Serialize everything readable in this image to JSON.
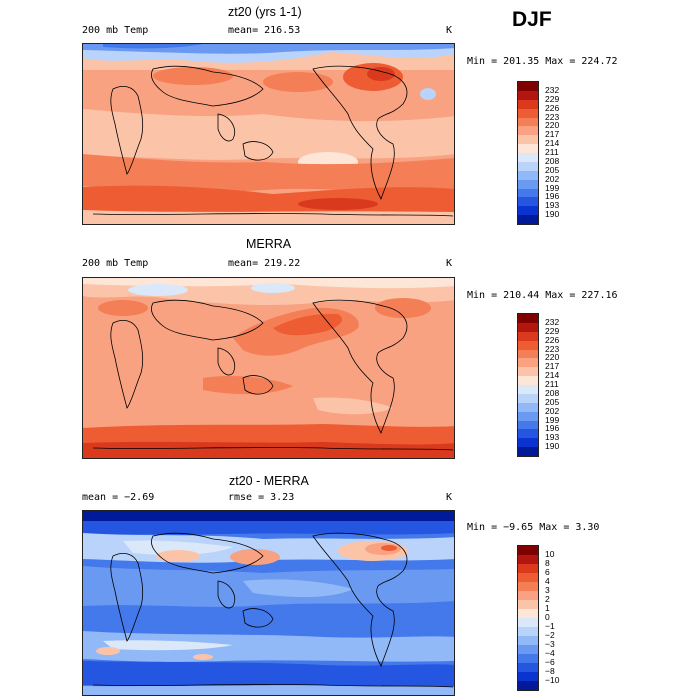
{
  "season": "DJF",
  "panels": [
    {
      "title": "zt20 (yrs 1-1)",
      "left_label": "200 mb Temp",
      "mid_label": "mean= 216.53",
      "unit": "K",
      "minmax": "Min = 201.35 Max = 224.72",
      "colorbar": {
        "labels": [
          "232",
          "229",
          "226",
          "223",
          "220",
          "217",
          "214",
          "211",
          "208",
          "205",
          "202",
          "199",
          "196",
          "193",
          "190"
        ],
        "colors": [
          "#7f0000",
          "#b3150f",
          "#d93a1e",
          "#ee5c33",
          "#f47e55",
          "#f8a282",
          "#fbc4a8",
          "#fde6d8",
          "#dbe8fa",
          "#b9d3fa",
          "#91b8f7",
          "#6a99f2",
          "#4479ec",
          "#2456e2",
          "#0a33cf",
          "#001a99"
        ]
      }
    },
    {
      "title": "MERRA",
      "left_label": "200 mb Temp",
      "mid_label": "mean= 219.22",
      "unit": "K",
      "minmax": "Min = 210.44 Max = 227.16",
      "colorbar": {
        "labels": [
          "232",
          "229",
          "226",
          "223",
          "220",
          "217",
          "214",
          "211",
          "208",
          "205",
          "202",
          "199",
          "196",
          "193",
          "190"
        ],
        "colors": [
          "#7f0000",
          "#b3150f",
          "#d93a1e",
          "#ee5c33",
          "#f47e55",
          "#f8a282",
          "#fbc4a8",
          "#fde6d8",
          "#dbe8fa",
          "#b9d3fa",
          "#91b8f7",
          "#6a99f2",
          "#4479ec",
          "#2456e2",
          "#0a33cf",
          "#001a99"
        ]
      }
    },
    {
      "title": "zt20 - MERRA",
      "left_label": "mean =  −2.69",
      "mid_label": "rmse =   3.23",
      "unit": "K",
      "minmax": "Min =  −9.65 Max =   3.30",
      "colorbar": {
        "labels": [
          "10",
          "8",
          "6",
          "4",
          "3",
          "2",
          "1",
          "0",
          "−1",
          "−2",
          "−3",
          "−4",
          "−6",
          "−8",
          "−10"
        ],
        "colors": [
          "#7f0000",
          "#b3150f",
          "#d93a1e",
          "#ee5c33",
          "#f47e55",
          "#f8a282",
          "#fbc4a8",
          "#fde6d8",
          "#dbe8fa",
          "#b9d3fa",
          "#91b8f7",
          "#6a99f2",
          "#4479ec",
          "#2456e2",
          "#0a33cf",
          "#001a99"
        ]
      }
    }
  ]
}
